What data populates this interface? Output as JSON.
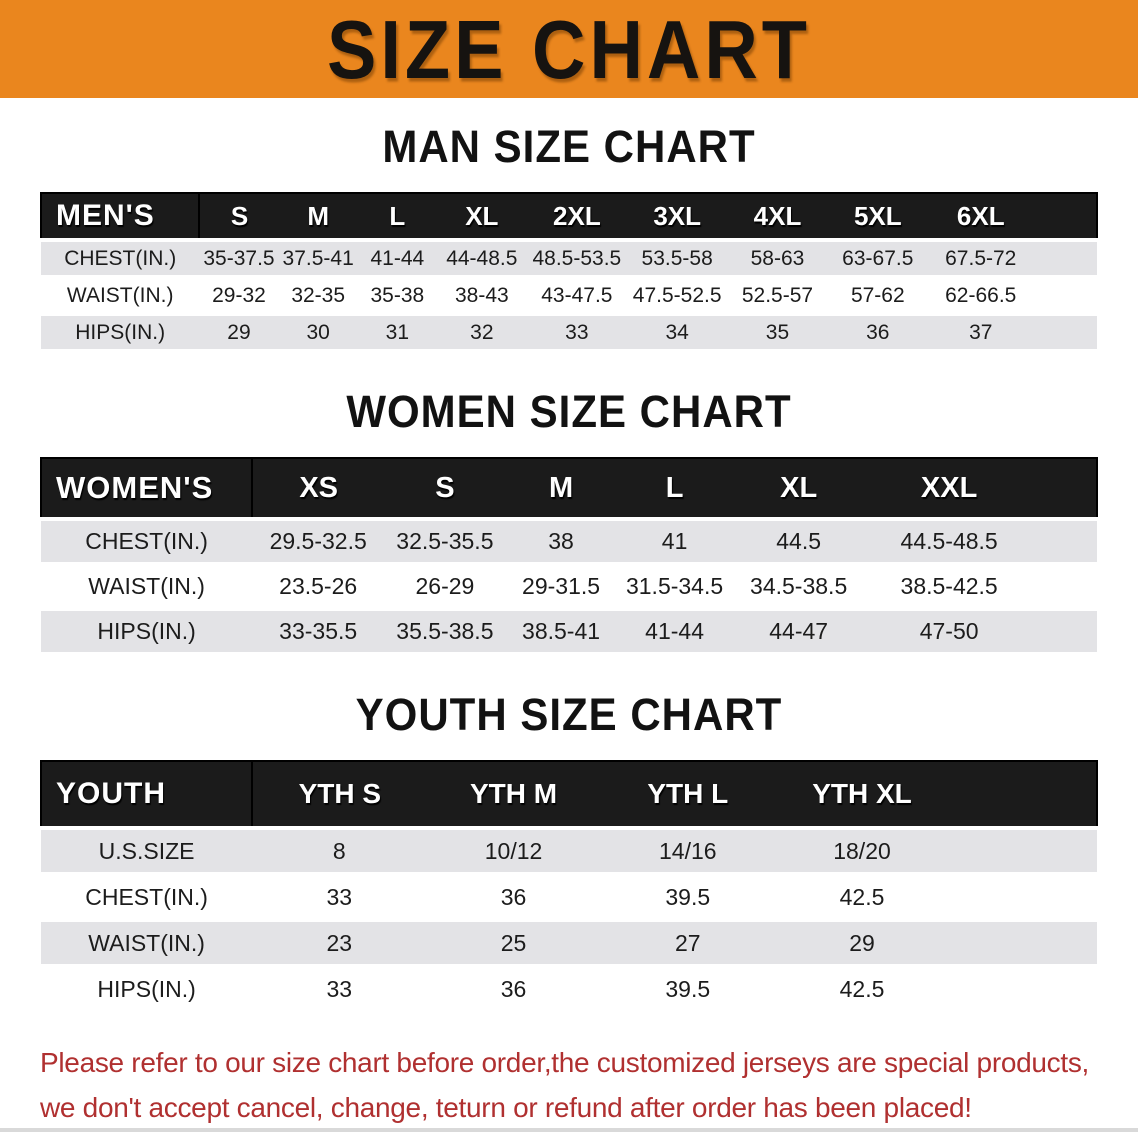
{
  "banner": {
    "title": "SIZE CHART",
    "bg_color": "#EA861E",
    "title_color": "#161310"
  },
  "colors": {
    "header_bar": "#1B1B1B",
    "header_text": "#FFFFFF",
    "stripe_row": "#E3E3E6",
    "disclaimer_text": "#B03030"
  },
  "sections": [
    {
      "title": "MAN SIZE CHART",
      "table": {
        "label": "MEN'S",
        "columns": [
          "S",
          "M",
          "L",
          "XL",
          "2XL",
          "3XL",
          "4XL",
          "5XL",
          "6XL"
        ],
        "rows": [
          {
            "label": "CHEST(IN.)",
            "values": [
              "35-37.5",
              "37.5-41",
              "41-44",
              "44-48.5",
              "48.5-53.5",
              "53.5-58",
              "58-63",
              "63-67.5",
              "67.5-72"
            ]
          },
          {
            "label": "WAIST(IN.)",
            "values": [
              "29-32",
              "32-35",
              "35-38",
              "38-43",
              "43-47.5",
              "47.5-52.5",
              "52.5-57",
              "57-62",
              "62-66.5"
            ]
          },
          {
            "label": "HIPS(IN.)",
            "values": [
              "29",
              "30",
              "31",
              "32",
              "33",
              "34",
              "35",
              "36",
              "37"
            ]
          }
        ]
      }
    },
    {
      "title": "WOMEN SIZE CHART",
      "table": {
        "label": "WOMEN'S",
        "columns": [
          "XS",
          "S",
          "M",
          "L",
          "XL",
          "XXL"
        ],
        "rows": [
          {
            "label": "CHEST(IN.)",
            "values": [
              "29.5-32.5",
              "32.5-35.5",
              "38",
              "41",
              "44.5",
              "44.5-48.5"
            ]
          },
          {
            "label": "WAIST(IN.)",
            "values": [
              "23.5-26",
              "26-29",
              "29-31.5",
              "31.5-34.5",
              "34.5-38.5",
              "38.5-42.5"
            ]
          },
          {
            "label": "HIPS(IN.)",
            "values": [
              "33-35.5",
              "35.5-38.5",
              "38.5-41",
              "41-44",
              "44-47",
              "47-50"
            ]
          }
        ]
      }
    },
    {
      "title": "YOUTH SIZE CHART",
      "table": {
        "label": "YOUTH",
        "columns": [
          "YTH S",
          "YTH M",
          "YTH L",
          "YTH XL"
        ],
        "rows": [
          {
            "label": "U.S.SIZE",
            "values": [
              "8",
              "10/12",
              "14/16",
              "18/20"
            ]
          },
          {
            "label": "CHEST(IN.)",
            "values": [
              "33",
              "36",
              "39.5",
              "42.5"
            ]
          },
          {
            "label": "WAIST(IN.)",
            "values": [
              "23",
              "25",
              "27",
              "29"
            ]
          },
          {
            "label": "HIPS(IN.)",
            "values": [
              "33",
              "36",
              "39.5",
              "42.5"
            ]
          }
        ]
      }
    }
  ],
  "footer": {
    "line1": "Please refer to our size chart before order,the customized jerseys are special products,",
    "line2": "we don't accept cancel, change, teturn or refund after order has been placed!"
  }
}
